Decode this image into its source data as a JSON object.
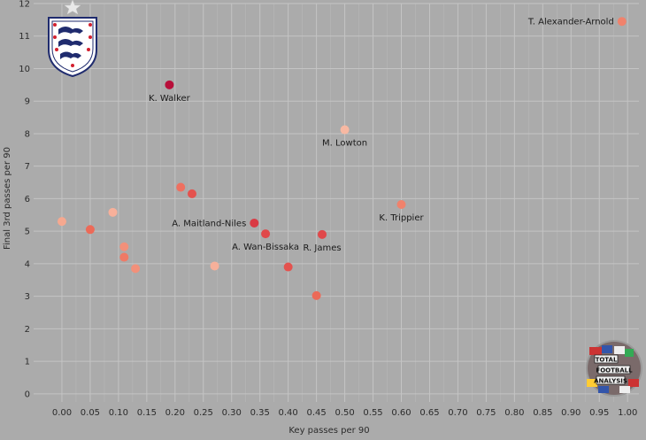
{
  "chart_data": {
    "type": "scatter",
    "xlabel": "Key passes per 90",
    "ylabel": "Final 3rd passes per 90",
    "xlim": [
      -0.05,
      1.02
    ],
    "ylim": [
      -0.25,
      12
    ],
    "xticks": [
      "0.00",
      "0.05",
      "0.10",
      "0.15",
      "0.20",
      "0.25",
      "0.30",
      "0.35",
      "0.40",
      "0.45",
      "0.50",
      "0.55",
      "0.60",
      "0.65",
      "0.70",
      "0.75",
      "0.80",
      "0.85",
      "0.90",
      "0.95",
      "1.00"
    ],
    "xtick_values": [
      0,
      0.05,
      0.1,
      0.15,
      0.2,
      0.25,
      0.3,
      0.35,
      0.4,
      0.45,
      0.5,
      0.55,
      0.6,
      0.65,
      0.7,
      0.75,
      0.8,
      0.85,
      0.9,
      0.95,
      1.0
    ],
    "yticks": [
      "0",
      "1",
      "2",
      "3",
      "4",
      "5",
      "6",
      "7",
      "8",
      "9",
      "10",
      "11",
      "12"
    ],
    "ytick_values": [
      0,
      1,
      2,
      3,
      4,
      5,
      6,
      7,
      8,
      9,
      10,
      11,
      12
    ],
    "grid": true,
    "points": [
      {
        "x": 0.99,
        "y": 11.45,
        "label": "T. Alexander-Arnold",
        "label_pos": "left",
        "color": "#f0826c"
      },
      {
        "x": 0.19,
        "y": 9.5,
        "label": "K. Walker",
        "label_pos": "below",
        "color": "#b80f3a"
      },
      {
        "x": 0.5,
        "y": 8.12,
        "label": "M. Lowton",
        "label_pos": "below",
        "color": "#f7b8a2"
      },
      {
        "x": 0.6,
        "y": 5.82,
        "label": "K. Trippier",
        "label_pos": "below",
        "color": "#f0826c"
      },
      {
        "x": 0.34,
        "y": 5.25,
        "label": "A. Maitland-Niles",
        "label_pos": "left",
        "color": "#d93a44"
      },
      {
        "x": 0.36,
        "y": 4.92,
        "label": "A. Wan-Bissaka",
        "label_pos": "below",
        "color": "#e0484a"
      },
      {
        "x": 0.46,
        "y": 4.9,
        "label": "R. James",
        "label_pos": "below",
        "color": "#e0484a"
      },
      {
        "x": 0.0,
        "y": 5.3,
        "label": "",
        "color": "#f6a88f"
      },
      {
        "x": 0.05,
        "y": 5.05,
        "label": "",
        "color": "#ec6a58"
      },
      {
        "x": 0.09,
        "y": 5.58,
        "label": "",
        "color": "#f7b09a"
      },
      {
        "x": 0.11,
        "y": 4.52,
        "label": "",
        "color": "#f2907a"
      },
      {
        "x": 0.11,
        "y": 4.2,
        "label": "",
        "color": "#ef7a66"
      },
      {
        "x": 0.13,
        "y": 3.85,
        "label": "",
        "color": "#f2907a"
      },
      {
        "x": 0.21,
        "y": 6.35,
        "label": "",
        "color": "#ee7060"
      },
      {
        "x": 0.23,
        "y": 6.15,
        "label": "",
        "color": "#e4524e"
      },
      {
        "x": 0.27,
        "y": 3.93,
        "label": "",
        "color": "#f7b09a"
      },
      {
        "x": 0.4,
        "y": 3.9,
        "label": "",
        "color": "#e4524e"
      },
      {
        "x": 0.45,
        "y": 3.02,
        "label": "",
        "color": "#ec6a58"
      }
    ],
    "colors": {
      "background": "#ababab",
      "grid": "#c4c4c4",
      "text": "#2b2b2b"
    }
  },
  "logos": {
    "england_crest": "england-crest",
    "watermark_text": [
      "TOTAL",
      "FOOTBALL",
      "ANALYSIS"
    ]
  }
}
